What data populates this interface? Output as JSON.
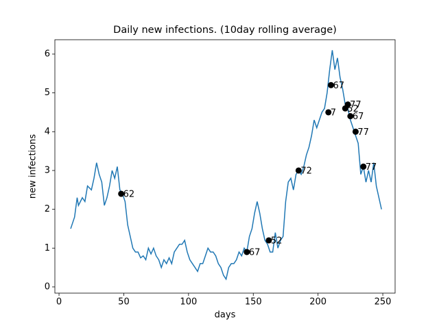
{
  "chart_data": {
    "type": "line",
    "title": "Daily new infections. (10day rolling average)",
    "xlabel": "days",
    "ylabel": "new infections",
    "color": "#1f77b4",
    "x": [
      9,
      12,
      14,
      15,
      18,
      20,
      22,
      25,
      27,
      29,
      31,
      33,
      35,
      37,
      39,
      41,
      43,
      45,
      47,
      49,
      51,
      53,
      55,
      57,
      59,
      61,
      63,
      65,
      67,
      69,
      71,
      73,
      75,
      77,
      79,
      81,
      83,
      85,
      87,
      89,
      91,
      93,
      95,
      97,
      99,
      101,
      103,
      105,
      107,
      109,
      111,
      113,
      115,
      117,
      119,
      121,
      123,
      125,
      127,
      129,
      131,
      133,
      135,
      137,
      139,
      141,
      143,
      145,
      147,
      149,
      151,
      153,
      155,
      157,
      159,
      161,
      163,
      165,
      167,
      169,
      171,
      173,
      175,
      177,
      179,
      181,
      183,
      185,
      187,
      189,
      191,
      193,
      195,
      197,
      199,
      201,
      203,
      205,
      207,
      209,
      211,
      213,
      215,
      217,
      219,
      221,
      223,
      225,
      227,
      229,
      231,
      233,
      235,
      237,
      239,
      241,
      243,
      245,
      247,
      249
    ],
    "values": [
      1.5,
      1.8,
      2.3,
      2.1,
      2.3,
      2.2,
      2.6,
      2.5,
      2.8,
      3.2,
      2.9,
      2.7,
      2.1,
      2.3,
      2.6,
      3.0,
      2.8,
      3.1,
      2.5,
      2.4,
      2.2,
      1.6,
      1.3,
      1.0,
      0.9,
      0.9,
      0.75,
      0.8,
      0.7,
      1.0,
      0.85,
      1.0,
      0.8,
      0.7,
      0.5,
      0.7,
      0.6,
      0.75,
      0.6,
      0.9,
      1.0,
      1.1,
      1.1,
      1.2,
      0.9,
      0.7,
      0.6,
      0.5,
      0.4,
      0.6,
      0.6,
      0.8,
      1.0,
      0.9,
      0.9,
      0.8,
      0.6,
      0.5,
      0.3,
      0.2,
      0.5,
      0.6,
      0.6,
      0.7,
      0.9,
      0.8,
      1.0,
      0.9,
      1.3,
      1.5,
      1.9,
      2.2,
      1.9,
      1.5,
      1.2,
      1.1,
      0.9,
      0.9,
      1.4,
      1.0,
      1.2,
      1.3,
      2.2,
      2.7,
      2.8,
      2.5,
      2.9,
      3.0,
      2.9,
      3.1,
      3.4,
      3.6,
      3.9,
      4.3,
      4.1,
      4.3,
      4.5,
      4.6,
      5.0,
      5.6,
      6.1,
      5.6,
      5.9,
      5.4,
      5.1,
      4.7,
      4.6,
      4.3,
      4.1,
      3.9,
      3.7,
      2.9,
      3.1,
      2.7,
      3.0,
      2.7,
      3.2,
      2.6,
      2.3,
      2.0
    ],
    "points": {
      "color": "#000000",
      "x": [
        48,
        145,
        162,
        185,
        208,
        210,
        221,
        223,
        225,
        229,
        235
      ],
      "values": [
        2.4,
        0.9,
        1.2,
        3.0,
        4.5,
        5.2,
        4.6,
        4.7,
        4.4,
        4.0,
        3.1
      ],
      "labels": [
        "62",
        "67",
        "52",
        "72",
        "7",
        "67",
        "52",
        "77",
        "67",
        "77",
        "77"
      ]
    },
    "xlim": [
      -3.2,
      259.5
    ],
    "ylim": [
      -0.16,
      6.37
    ],
    "xticks": [
      0,
      50,
      100,
      150,
      200,
      250
    ],
    "yticks": [
      0,
      1,
      2,
      3,
      4,
      5,
      6
    ]
  }
}
